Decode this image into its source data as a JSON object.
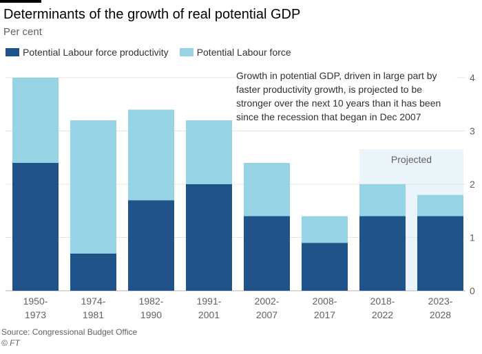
{
  "header": {
    "title": "Determinants of the growth of real potential GDP",
    "subtitle": "Per cent"
  },
  "legend": [
    {
      "label": "Potential Labour force productivity",
      "color": "#1f5389"
    },
    {
      "label": "Potential Labour force",
      "color": "#95d3e5"
    }
  ],
  "annotation": "Growth in potential GDP, driven in large part by faster productivity growth, is projected to be stronger over the next 10 years than it has been since the recession that began in Dec 2007",
  "footer": {
    "source": "Source: Congressional Budget Office",
    "copyright": "© FT"
  },
  "colors": {
    "productivity": "#1f5389",
    "labour_force": "#95d3e5",
    "projected_shade": "#eaf4fb",
    "grid": "#e9e3dd"
  },
  "chart_data": {
    "type": "bar",
    "stacked": true,
    "title": "Determinants of the growth of real potential GDP",
    "subtitle": "Per cent",
    "xlabel": "",
    "ylabel": "Per cent",
    "ylim": [
      0,
      4
    ],
    "yticks": [
      0,
      1,
      2,
      3,
      4
    ],
    "y_axis_side": "right",
    "grid": true,
    "legend_position": "top-left",
    "categories": [
      [
        "1950-",
        "1973"
      ],
      [
        "1974-",
        "1981"
      ],
      [
        "1982-",
        "1990"
      ],
      [
        "1991-",
        "2001"
      ],
      [
        "2002-",
        "2007"
      ],
      [
        "2008-",
        "2017"
      ],
      [
        "2018-",
        "2022"
      ],
      [
        "2023-",
        "2028"
      ]
    ],
    "series": [
      {
        "name": "Potential Labour force productivity",
        "values": [
          2.4,
          0.7,
          1.7,
          2.0,
          1.4,
          0.9,
          1.4,
          1.4
        ]
      },
      {
        "name": "Potential Labour force",
        "values": [
          1.6,
          2.5,
          1.7,
          1.2,
          1.0,
          0.5,
          0.6,
          0.4
        ]
      }
    ],
    "totals": [
      4.0,
      3.2,
      3.4,
      3.2,
      2.4,
      1.4,
      2.0,
      1.8
    ],
    "annotations": [
      {
        "text": "Projected",
        "applies_to_categories": [
          6,
          7
        ]
      }
    ]
  }
}
